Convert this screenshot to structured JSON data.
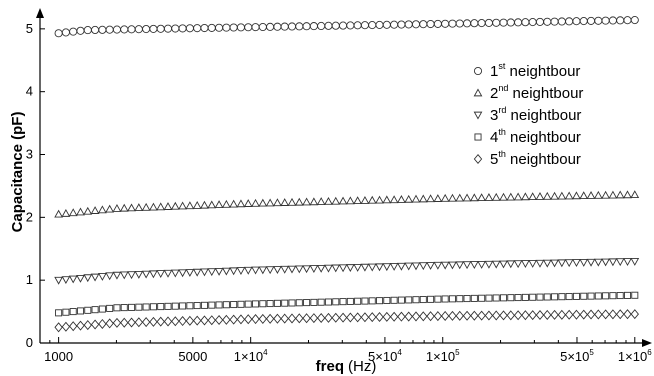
{
  "chart_data": {
    "type": "scatter",
    "title": "",
    "xscale": "log",
    "xlim": [
      800,
      1200000
    ],
    "ylim": [
      0,
      5.3
    ],
    "xlabel": {
      "bold": "freq",
      "unit": "(Hz)"
    },
    "ylabel": "Capacitance (pF)",
    "y_ticks": [
      {
        "value": 0,
        "label": "0"
      },
      {
        "value": 1,
        "label": "1"
      },
      {
        "value": 2,
        "label": "2"
      },
      {
        "value": 3,
        "label": "3"
      },
      {
        "value": 4,
        "label": "4"
      },
      {
        "value": 5,
        "label": "5"
      }
    ],
    "x_ticks": [
      {
        "value": 1000,
        "label": "1000"
      },
      {
        "value": 5000,
        "label": "5000"
      },
      {
        "value": 10000,
        "label": "1×10",
        "exp": "4"
      },
      {
        "value": 50000,
        "label": "5×10",
        "exp": "4"
      },
      {
        "value": 100000,
        "label": "1×10",
        "exp": "5"
      },
      {
        "value": 500000,
        "label": "5×10",
        "exp": "5"
      },
      {
        "value": 1000000,
        "label": "1×10",
        "exp": "6"
      }
    ],
    "x_range_points": {
      "start": 1000,
      "end": 1000000,
      "count": 80
    },
    "series": [
      {
        "name_base": "1",
        "name_sup": "st",
        "name_rest": " neightbour",
        "marker": "circle",
        "anchors": [
          [
            1000,
            4.93
          ],
          [
            1400,
            4.98
          ],
          [
            5000,
            5.01
          ],
          [
            100000,
            5.08
          ],
          [
            1000000,
            5.14
          ]
        ]
      },
      {
        "name_base": "2",
        "name_sup": "nd",
        "name_rest": " neightbour",
        "marker": "triangle-up",
        "anchors": [
          [
            1000,
            2.05
          ],
          [
            2000,
            2.14
          ],
          [
            10000,
            2.22
          ],
          [
            100000,
            2.3
          ],
          [
            1000000,
            2.36
          ]
        ]
      },
      {
        "name_base": "3",
        "name_sup": "rd",
        "name_rest": " neightbour",
        "marker": "triangle-down",
        "anchors": [
          [
            1000,
            1.0
          ],
          [
            2000,
            1.08
          ],
          [
            10000,
            1.16
          ],
          [
            100000,
            1.24
          ],
          [
            1000000,
            1.3
          ]
        ]
      },
      {
        "name_base": "4",
        "name_sup": "th",
        "name_rest": " neightbour",
        "marker": "square",
        "anchors": [
          [
            1000,
            0.48
          ],
          [
            2000,
            0.56
          ],
          [
            10000,
            0.62
          ],
          [
            100000,
            0.7
          ],
          [
            1000000,
            0.76
          ]
        ]
      },
      {
        "name_base": "5",
        "name_sup": "th",
        "name_rest": " neightbour",
        "marker": "diamond",
        "anchors": [
          [
            1000,
            0.25
          ],
          [
            2000,
            0.32
          ],
          [
            10000,
            0.38
          ],
          [
            100000,
            0.43
          ],
          [
            1000000,
            0.46
          ]
        ]
      }
    ],
    "grid": false,
    "legend_position": "top-right"
  }
}
